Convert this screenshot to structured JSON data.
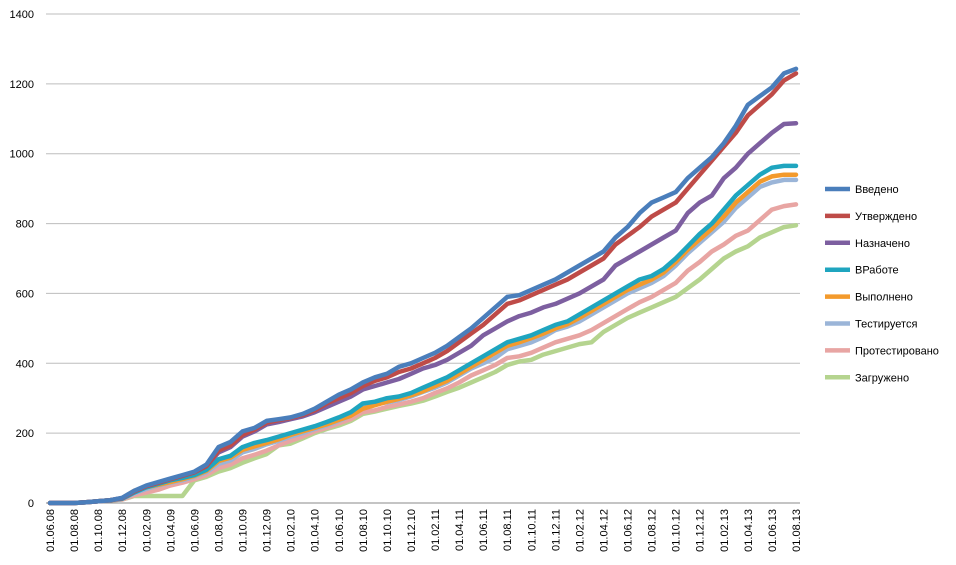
{
  "chart_data": {
    "type": "line",
    "categories": [
      "01.06.08",
      null,
      "01.08.08",
      null,
      "01.10.08",
      null,
      "01.12.08",
      null,
      "01.02.09",
      null,
      "01.04.09",
      null,
      "01.06.09",
      null,
      "01.08.09",
      null,
      "01.10.09",
      null,
      "01.12.09",
      null,
      "01.02.10",
      null,
      "01.04.10",
      null,
      "01.06.10",
      null,
      "01.08.10",
      null,
      "01.10.10",
      null,
      "01.12.10",
      null,
      "01.02.11",
      null,
      "01.04.11",
      null,
      "01.06.11",
      null,
      "01.08.11",
      null,
      "01.10.11",
      null,
      "01.12.11",
      null,
      "01.02.12",
      null,
      "01.04.12",
      null,
      "01.06.12",
      null,
      "01.08.12",
      null,
      "01.10.12",
      null,
      "01.12.12",
      null,
      "01.02.13",
      null,
      "01.04.13",
      null,
      "01.06.13",
      null,
      "01.08.13"
    ],
    "series": [
      {
        "name": "Введено",
        "color": "#4a7ebb",
        "values": [
          0,
          0,
          0,
          2,
          5,
          8,
          15,
          35,
          50,
          60,
          70,
          80,
          90,
          110,
          160,
          175,
          205,
          215,
          235,
          240,
          245,
          255,
          270,
          290,
          310,
          325,
          345,
          360,
          370,
          390,
          400,
          415,
          430,
          450,
          475,
          500,
          530,
          560,
          590,
          595,
          610,
          625,
          640,
          660,
          680,
          700,
          720,
          760,
          790,
          830,
          860,
          875,
          890,
          930,
          960,
          990,
          1030,
          1080,
          1140,
          1165,
          1190,
          1230,
          1243
        ]
      },
      {
        "name": "Утверждено",
        "color": "#be4b48",
        "values": [
          0,
          0,
          0,
          2,
          5,
          8,
          14,
          33,
          48,
          58,
          68,
          78,
          88,
          105,
          150,
          165,
          195,
          210,
          230,
          237,
          243,
          252,
          265,
          285,
          300,
          315,
          335,
          350,
          360,
          375,
          385,
          400,
          415,
          435,
          460,
          485,
          510,
          540,
          570,
          580,
          595,
          610,
          625,
          640,
          660,
          680,
          700,
          740,
          765,
          790,
          820,
          840,
          860,
          900,
          940,
          980,
          1020,
          1060,
          1110,
          1140,
          1170,
          1210,
          1230
        ]
      },
      {
        "name": "Назначено",
        "color": "#7d5fa0",
        "values": [
          0,
          0,
          0,
          2,
          5,
          8,
          14,
          33,
          48,
          58,
          68,
          78,
          88,
          105,
          145,
          160,
          190,
          205,
          225,
          232,
          240,
          248,
          260,
          275,
          290,
          305,
          325,
          335,
          345,
          355,
          370,
          385,
          395,
          410,
          430,
          450,
          480,
          500,
          520,
          535,
          545,
          560,
          570,
          585,
          600,
          620,
          640,
          680,
          700,
          720,
          740,
          760,
          780,
          830,
          860,
          880,
          930,
          960,
          1000,
          1030,
          1060,
          1085,
          1087
        ]
      },
      {
        "name": "ВРаботе",
        "color": "#1fa5bf",
        "values": [
          0,
          0,
          0,
          2,
          5,
          8,
          12,
          30,
          45,
          55,
          65,
          72,
          80,
          95,
          125,
          135,
          160,
          172,
          180,
          190,
          200,
          210,
          220,
          232,
          245,
          260,
          285,
          290,
          300,
          305,
          315,
          330,
          345,
          360,
          380,
          400,
          420,
          440,
          460,
          470,
          480,
          495,
          510,
          520,
          540,
          560,
          580,
          600,
          620,
          640,
          650,
          670,
          700,
          735,
          770,
          800,
          840,
          880,
          910,
          940,
          960,
          965,
          965
        ]
      },
      {
        "name": "Выполнено",
        "color": "#f39a2c",
        "values": [
          0,
          0,
          0,
          2,
          5,
          8,
          14,
          35,
          45,
          52,
          60,
          68,
          78,
          92,
          120,
          130,
          152,
          162,
          172,
          182,
          195,
          205,
          215,
          225,
          238,
          250,
          270,
          280,
          290,
          298,
          308,
          320,
          335,
          350,
          370,
          390,
          410,
          430,
          450,
          460,
          472,
          485,
          500,
          512,
          530,
          550,
          570,
          590,
          610,
          625,
          640,
          660,
          690,
          725,
          755,
          785,
          820,
          860,
          890,
          920,
          935,
          940,
          940
        ]
      },
      {
        "name": "Тестируется",
        "color": "#9bb5d8",
        "values": [
          0,
          0,
          0,
          2,
          5,
          8,
          12,
          28,
          40,
          50,
          58,
          65,
          75,
          88,
          112,
          122,
          145,
          155,
          168,
          178,
          190,
          200,
          212,
          222,
          235,
          250,
          280,
          285,
          288,
          295,
          305,
          318,
          330,
          345,
          365,
          385,
          400,
          415,
          440,
          450,
          460,
          475,
          495,
          505,
          520,
          540,
          560,
          580,
          600,
          615,
          630,
          650,
          680,
          715,
          745,
          775,
          805,
          845,
          875,
          905,
          918,
          925,
          925
        ]
      },
      {
        "name": "Протестировано",
        "color": "#e8a5a3",
        "values": [
          0,
          0,
          0,
          2,
          5,
          8,
          10,
          22,
          30,
          38,
          50,
          58,
          68,
          80,
          100,
          110,
          128,
          138,
          150,
          165,
          178,
          190,
          205,
          215,
          228,
          240,
          260,
          265,
          275,
          282,
          290,
          300,
          315,
          328,
          345,
          365,
          380,
          395,
          415,
          420,
          430,
          445,
          460,
          470,
          480,
          495,
          515,
          535,
          555,
          575,
          590,
          610,
          630,
          665,
          690,
          720,
          740,
          765,
          780,
          810,
          840,
          850,
          855
        ]
      },
      {
        "name": "Загружено",
        "color": "#b5d48f",
        "values": [
          0,
          0,
          0,
          2,
          5,
          8,
          10,
          20,
          20,
          20,
          20,
          20,
          65,
          75,
          90,
          100,
          115,
          128,
          140,
          165,
          170,
          185,
          200,
          212,
          222,
          235,
          255,
          262,
          270,
          278,
          285,
          293,
          305,
          318,
          330,
          345,
          360,
          375,
          395,
          405,
          410,
          425,
          435,
          445,
          455,
          460,
          490,
          510,
          530,
          545,
          560,
          575,
          590,
          615,
          640,
          670,
          700,
          720,
          735,
          760,
          775,
          790,
          795
        ]
      }
    ],
    "ylim": [
      0,
      1400
    ],
    "yticks": [
      0,
      200,
      400,
      600,
      800,
      1000,
      1200,
      1400
    ],
    "grid": true,
    "legend": "right"
  }
}
